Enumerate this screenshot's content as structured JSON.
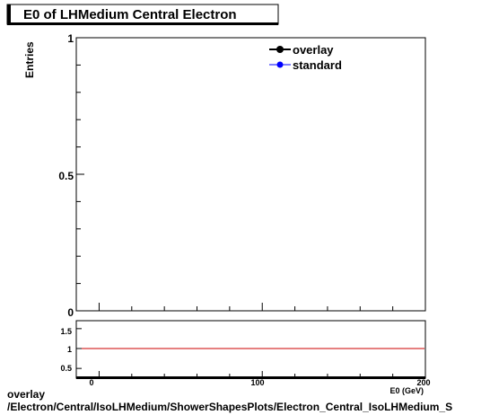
{
  "chart_data": [
    {
      "type": "line",
      "title": "E0 of LHMedium Central  Electron",
      "ylabel": "Entries",
      "xlim": [
        -14,
        200
      ],
      "ylim": [
        0,
        1
      ],
      "yticks": [
        "0",
        "0.5",
        "1"
      ],
      "series": [
        {
          "name": "overlay",
          "color": "#000000",
          "values": []
        },
        {
          "name": "standard",
          "color": "#0000ff",
          "values": []
        }
      ],
      "legend": "top-right"
    },
    {
      "type": "line",
      "xlim": [
        -14,
        200
      ],
      "ylim": [
        0.3,
        1.7
      ],
      "xticks": [
        "0",
        "100",
        "200"
      ],
      "yticks": [
        "0.5",
        "1",
        "1.5"
      ],
      "xlabel": "E0 (GeV)",
      "reference_line": {
        "y": 1,
        "color": "#cc0000"
      }
    }
  ],
  "footer": {
    "line1": "overlay",
    "line2": "/Electron/Central/IsoLHMedium/ShowerShapesPlots/Electron_Central_IsoLHMedium_S"
  }
}
